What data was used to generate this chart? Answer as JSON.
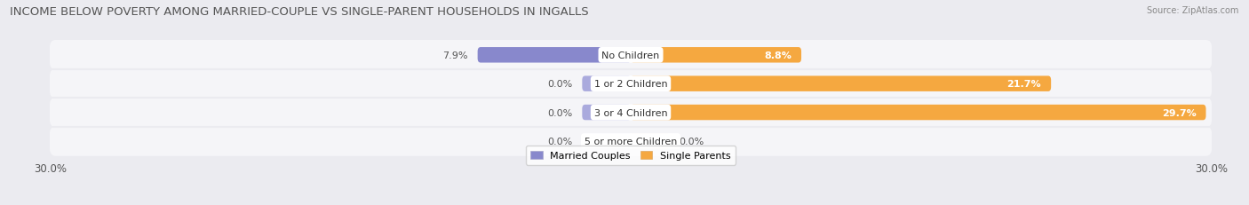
{
  "title": "INCOME BELOW POVERTY AMONG MARRIED-COUPLE VS SINGLE-PARENT HOUSEHOLDS IN INGALLS",
  "source": "Source: ZipAtlas.com",
  "categories": [
    "No Children",
    "1 or 2 Children",
    "3 or 4 Children",
    "5 or more Children"
  ],
  "married_values": [
    7.9,
    0.0,
    0.0,
    0.0
  ],
  "single_values": [
    8.8,
    21.7,
    29.7,
    0.0
  ],
  "single_stub": 0.0,
  "married_stub": 2.5,
  "x_min": -30.0,
  "x_max": 30.0,
  "married_color": "#8888cc",
  "married_stub_color": "#aaaadd",
  "single_color": "#f5a840",
  "single_stub_color": "#f5c88a",
  "bg_color": "#ebebf0",
  "row_bg_color": "#f5f5f8",
  "title_fontsize": 9.5,
  "label_fontsize": 8,
  "tick_fontsize": 8.5,
  "bar_height": 0.52,
  "legend_labels": [
    "Married Couples",
    "Single Parents"
  ]
}
